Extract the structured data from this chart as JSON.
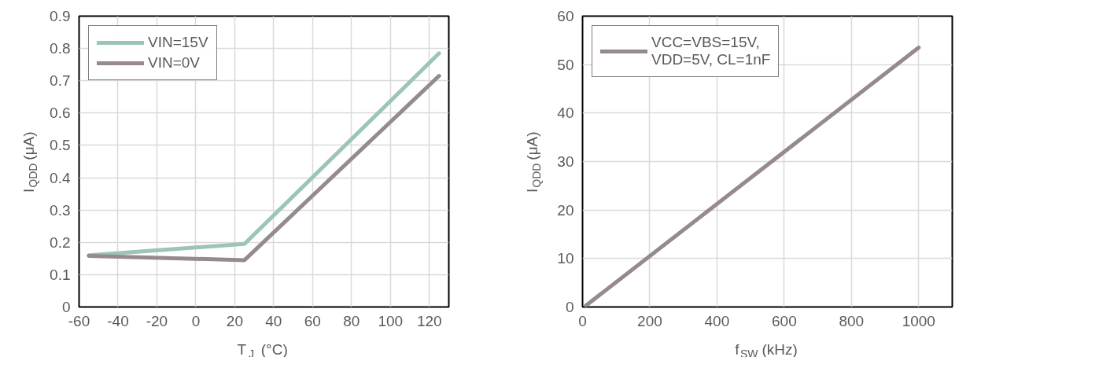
{
  "chart_data": [
    {
      "type": "line",
      "xlabel": "T$_{J}$ (°C)",
      "ylabel": "I$_{QDD}$ (μA)",
      "x": [
        -55,
        25,
        125
      ],
      "xlim": [
        -60,
        130
      ],
      "xticks": [
        -60,
        -40,
        -20,
        0,
        20,
        40,
        60,
        80,
        100,
        120
      ],
      "ylim": [
        0,
        0.9
      ],
      "yticks": [
        0,
        0.1,
        0.2,
        0.3,
        0.4,
        0.5,
        0.6,
        0.7,
        0.8,
        0.9
      ],
      "grid": true,
      "legend": "top left",
      "series": [
        {
          "name": "VIN=15V",
          "color": "#9cc5b6",
          "values": [
            0.16,
            0.195,
            0.785
          ]
        },
        {
          "name": "VIN=0V",
          "color": "#968a8d",
          "values": [
            0.158,
            0.145,
            0.715
          ]
        }
      ]
    },
    {
      "type": "line",
      "xlabel": "f$_{SW}$ (kHz)",
      "ylabel": "I$_{QDD}$ (μA)",
      "x": [
        10,
        1000
      ],
      "xlim": [
        0,
        1100
      ],
      "xticks": [
        0,
        200,
        400,
        600,
        800,
        1000
      ],
      "ylim": [
        0,
        60
      ],
      "yticks": [
        0,
        10,
        20,
        30,
        40,
        50,
        60
      ],
      "grid": true,
      "legend": "top left",
      "series": [
        {
          "name": "VCC=VBS=15V, VDD=5V, CL=1nF",
          "color": "#968a8d",
          "values": [
            0.3,
            53.5
          ]
        }
      ]
    }
  ]
}
